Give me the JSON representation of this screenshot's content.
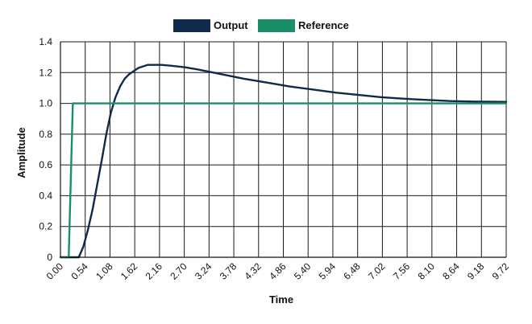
{
  "chart_data": {
    "type": "line",
    "title": "",
    "xlabel": "Time",
    "ylabel": "Amplitude",
    "xlim": [
      0,
      9.72
    ],
    "ylim": [
      0,
      1.4
    ],
    "grid": true,
    "legend_position": "top-center",
    "x_ticks": [
      "0.00",
      "0.54",
      "1.08",
      "1.62",
      "2.16",
      "2.70",
      "3.24",
      "3.78",
      "4.32",
      "4.86",
      "5.40",
      "5.94",
      "6.48",
      "7.02",
      "7.56",
      "8.10",
      "8.64",
      "9.18",
      "9.72"
    ],
    "y_ticks": [
      "0",
      "0.2",
      "0.4",
      "0.6",
      "0.8",
      "1.0",
      "1.2",
      "1.4"
    ],
    "series": [
      {
        "name": "Output",
        "color": "#0f2a4a",
        "x": [
          0.0,
          0.4,
          0.5,
          0.6,
          0.7,
          0.8,
          0.9,
          1.0,
          1.1,
          1.2,
          1.3,
          1.4,
          1.5,
          1.6,
          1.7,
          1.8,
          1.9,
          2.0,
          2.1,
          2.2,
          2.4,
          2.7,
          3.0,
          3.5,
          4.0,
          4.5,
          5.0,
          5.5,
          6.0,
          6.5,
          7.0,
          7.5,
          8.0,
          8.5,
          9.0,
          9.72
        ],
        "y": [
          0.0,
          0.0,
          0.07,
          0.18,
          0.31,
          0.47,
          0.63,
          0.8,
          0.94,
          1.04,
          1.11,
          1.16,
          1.19,
          1.21,
          1.23,
          1.24,
          1.25,
          1.25,
          1.25,
          1.25,
          1.245,
          1.235,
          1.22,
          1.19,
          1.16,
          1.135,
          1.11,
          1.09,
          1.07,
          1.055,
          1.04,
          1.03,
          1.022,
          1.015,
          1.012,
          1.01
        ]
      },
      {
        "name": "Reference",
        "color": "#1a8f63",
        "x": [
          0.0,
          0.18,
          0.18,
          0.27,
          9.72
        ],
        "y": [
          0.0,
          0.0,
          0.0,
          1.0,
          1.0
        ]
      }
    ]
  }
}
